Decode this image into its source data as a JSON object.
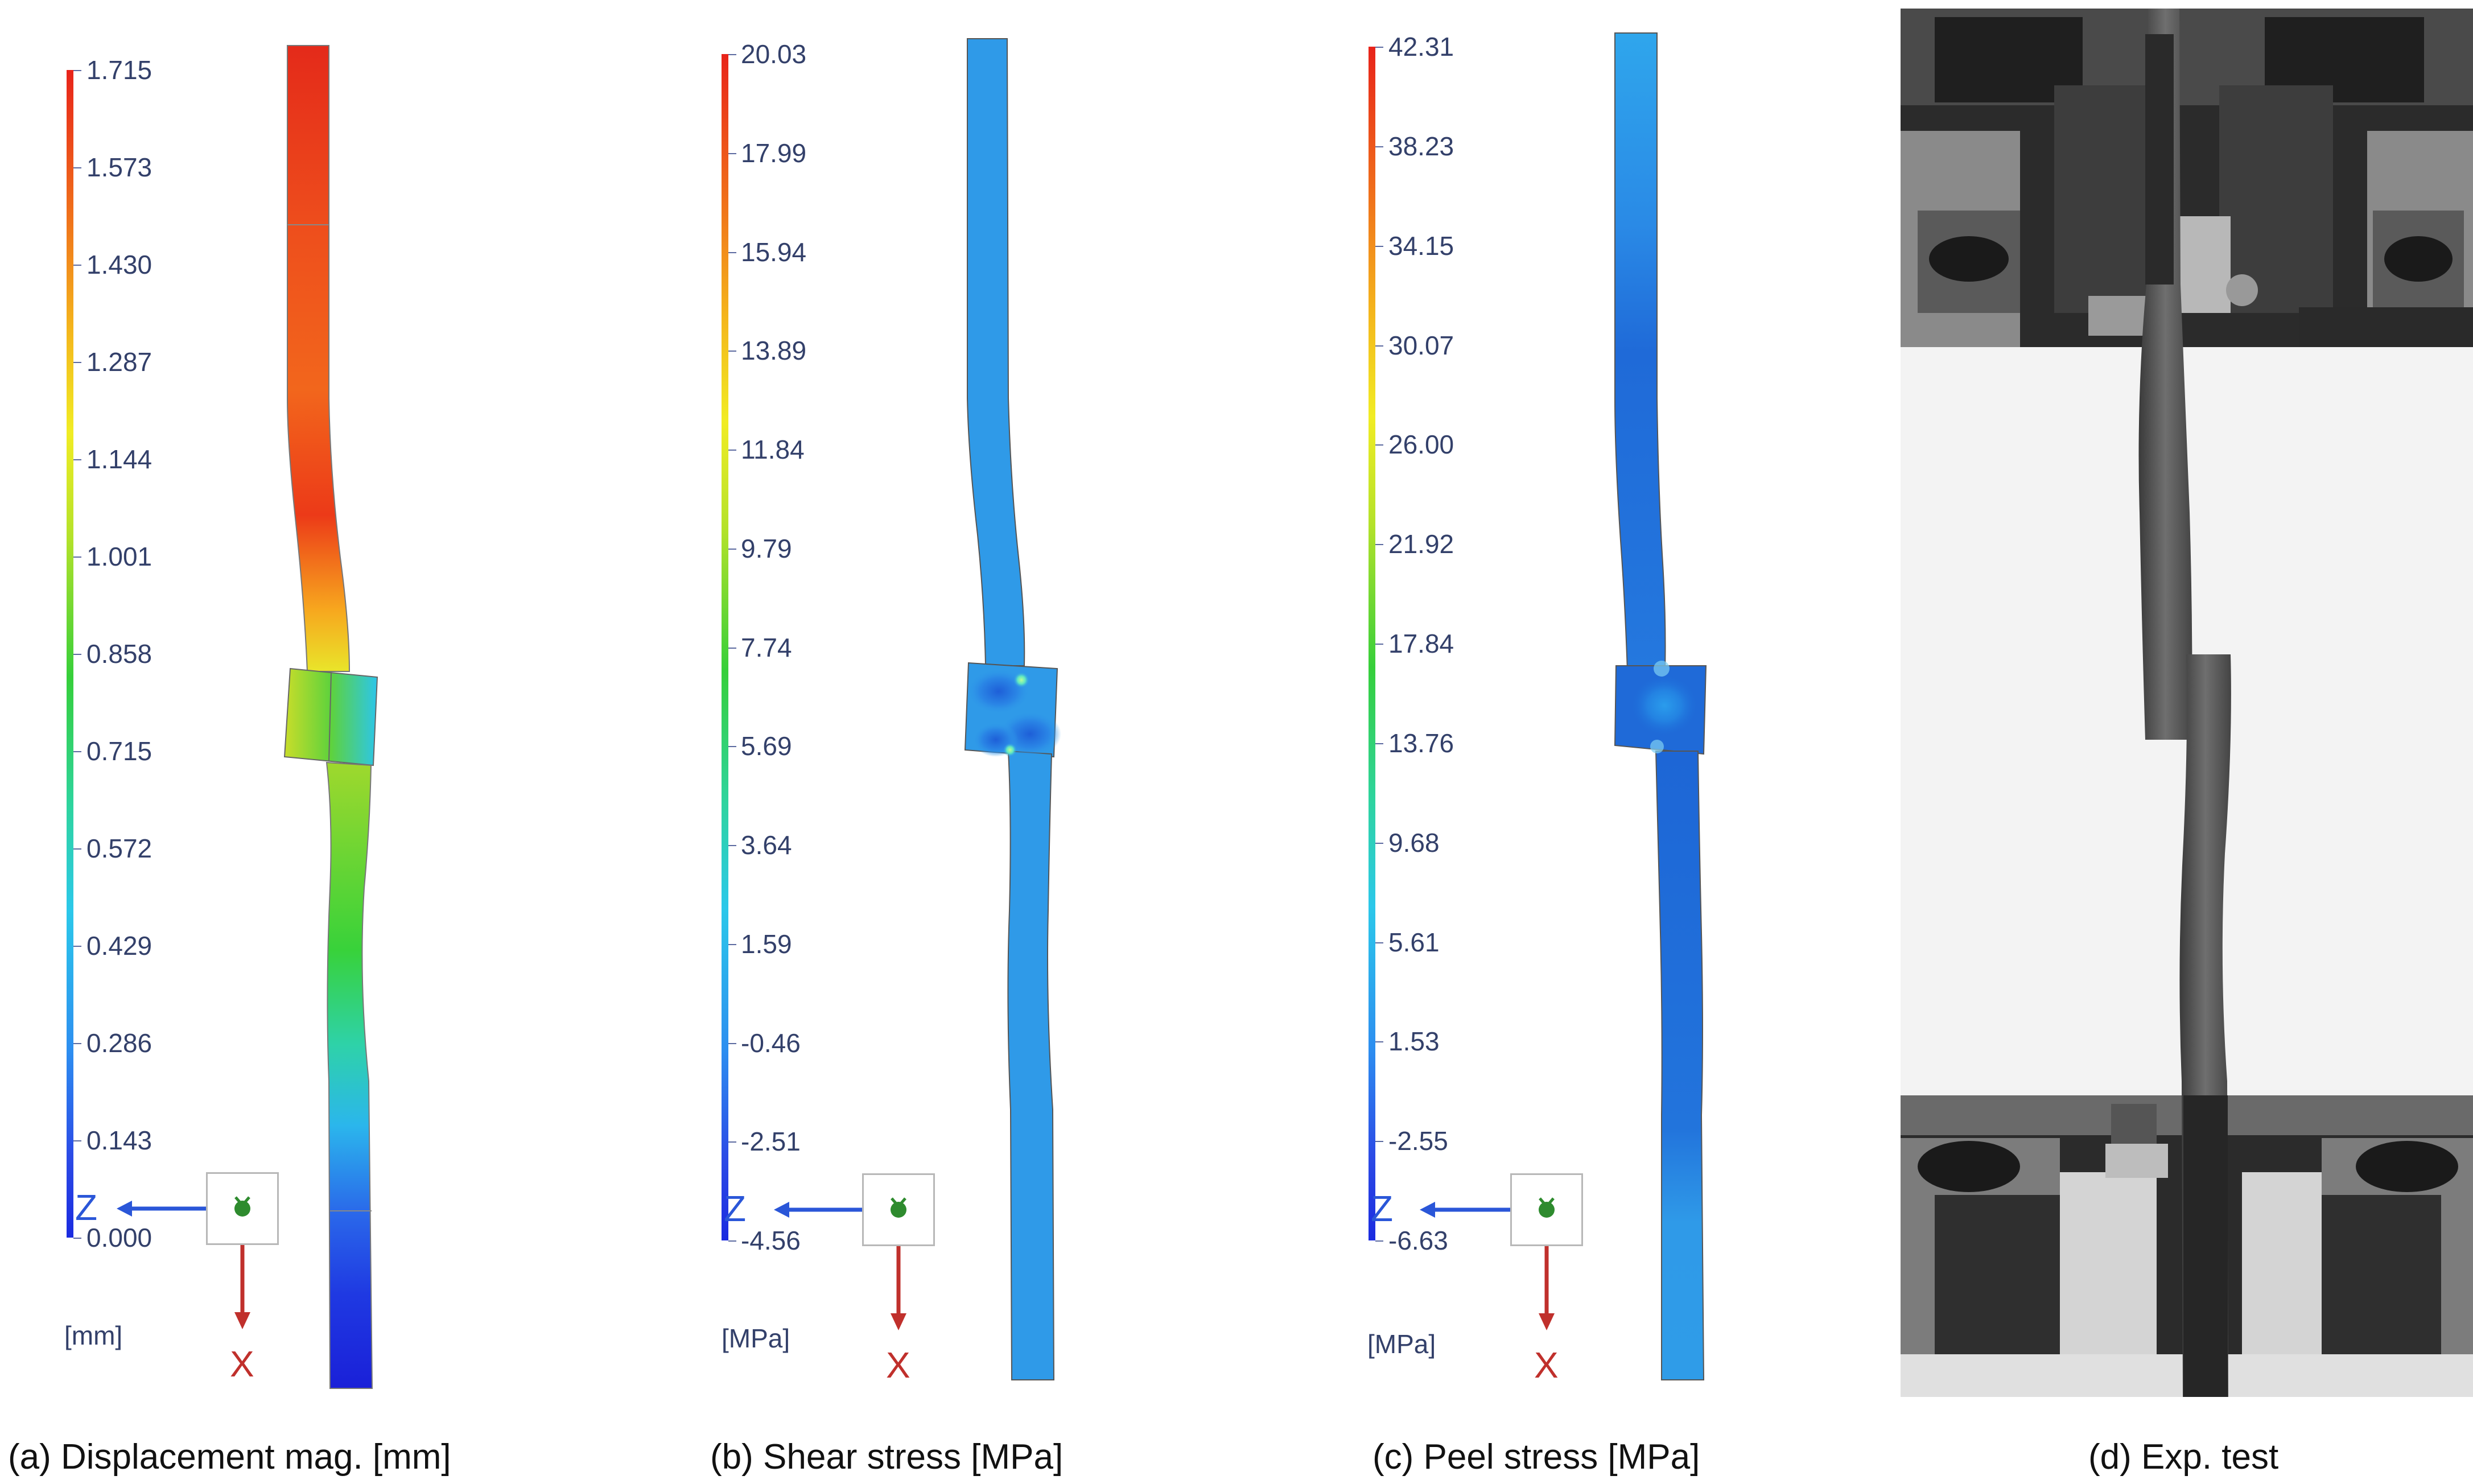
{
  "panels": [
    {
      "caption": "(a) Displacement mag. [mm]",
      "unit": "[mm]",
      "ticks": [
        "1.715",
        "1.573",
        "1.430",
        "1.287",
        "1.144",
        "1.001",
        "0.858",
        "0.715",
        "0.572",
        "0.429",
        "0.286",
        "0.143",
        "0.000"
      ],
      "field": "displacement"
    },
    {
      "caption": "(b) Shear stress [MPa]",
      "unit": "[MPa]",
      "ticks": [
        "20.03",
        "17.99",
        "15.94",
        "13.89",
        "11.84",
        "9.79",
        "7.74",
        "5.69",
        "3.64",
        "1.59",
        "-0.46",
        "-2.51",
        "-4.56"
      ],
      "field": "shear"
    },
    {
      "caption": "(c) Peel stress [MPa]",
      "unit": "[MPa]",
      "ticks": [
        "42.31",
        "38.23",
        "34.15",
        "30.07",
        "26.00",
        "21.92",
        "17.84",
        "13.76",
        "9.68",
        "5.61",
        "1.53",
        "-2.55",
        "-6.63"
      ],
      "field": "peel"
    },
    {
      "caption": "(d) Exp. test",
      "field": "photo"
    }
  ],
  "triad": {
    "axis_z": "Z",
    "axis_x": "X",
    "z_color": "#2a56d8",
    "x_color": "#c0302c",
    "node_color": "#2e8b2e"
  },
  "colors": {
    "stress_blue": "#2f9ae8",
    "stress_dark": "#1c6fd6",
    "cmap_top": "#e8231a",
    "cmap_bottom": "#1a2be0"
  }
}
